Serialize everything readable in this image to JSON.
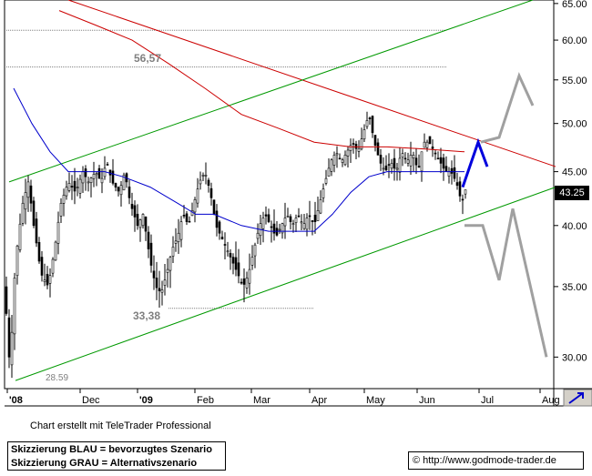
{
  "chart_data": {
    "type": "candlestick",
    "y_scale": "log",
    "ylim": [
      28,
      65.5
    ],
    "y_ticks": [
      "65.00",
      "60.00",
      "55.00",
      "50.00",
      "45.00",
      "40.00",
      "35.00",
      "30.00"
    ],
    "x_ticks": [
      "'08",
      "Dec",
      "'09",
      "Feb",
      "Mar",
      "Apr",
      "May",
      "Jun",
      "Jul",
      "Aug"
    ],
    "last_price": "43.25",
    "annotations": {
      "high": "56,57",
      "low": "33,38",
      "start": "28.59"
    },
    "price_path": [
      [
        0,
        35
      ],
      [
        6,
        29
      ],
      [
        12,
        37
      ],
      [
        20,
        42
      ],
      [
        26,
        44
      ],
      [
        32,
        40
      ],
      [
        40,
        36
      ],
      [
        48,
        35
      ],
      [
        55,
        38
      ],
      [
        62,
        42
      ],
      [
        70,
        44
      ],
      [
        78,
        43
      ],
      [
        86,
        45
      ],
      [
        92,
        44
      ],
      [
        100,
        45
      ],
      [
        106,
        44
      ],
      [
        112,
        46
      ],
      [
        118,
        44
      ],
      [
        126,
        43
      ],
      [
        132,
        45
      ],
      [
        138,
        42
      ],
      [
        146,
        40
      ],
      [
        152,
        41
      ],
      [
        160,
        37
      ],
      [
        166,
        35
      ],
      [
        172,
        34.5
      ],
      [
        178,
        36
      ],
      [
        184,
        38
      ],
      [
        190,
        39
      ],
      [
        196,
        41
      ],
      [
        202,
        40
      ],
      [
        208,
        42
      ],
      [
        214,
        44
      ],
      [
        220,
        45
      ],
      [
        226,
        43
      ],
      [
        232,
        40
      ],
      [
        238,
        39
      ],
      [
        244,
        38
      ],
      [
        250,
        37
      ],
      [
        256,
        36
      ],
      [
        262,
        35
      ],
      [
        268,
        36
      ],
      [
        274,
        38
      ],
      [
        280,
        40
      ],
      [
        286,
        41
      ],
      [
        292,
        40
      ],
      [
        298,
        39
      ],
      [
        304,
        40
      ],
      [
        310,
        41
      ],
      [
        316,
        40
      ],
      [
        322,
        41
      ],
      [
        328,
        40
      ],
      [
        334,
        41
      ],
      [
        340,
        40
      ],
      [
        346,
        42
      ],
      [
        352,
        44
      ],
      [
        358,
        46
      ],
      [
        364,
        47
      ],
      [
        370,
        46
      ],
      [
        376,
        47
      ],
      [
        382,
        48
      ],
      [
        388,
        47
      ],
      [
        394,
        49
      ],
      [
        400,
        51
      ],
      [
        406,
        48
      ],
      [
        412,
        46
      ],
      [
        418,
        45
      ],
      [
        424,
        46
      ],
      [
        430,
        45
      ],
      [
        436,
        47
      ],
      [
        442,
        46
      ],
      [
        448,
        47
      ],
      [
        454,
        45
      ],
      [
        460,
        48
      ],
      [
        466,
        48
      ],
      [
        472,
        47
      ],
      [
        478,
        46
      ],
      [
        484,
        45
      ],
      [
        490,
        45
      ],
      [
        496,
        44
      ],
      [
        502,
        42
      ],
      [
        506,
        43.25
      ]
    ],
    "moving_averages": [
      {
        "color": "#0000cc",
        "values": [
          [
            10,
            54
          ],
          [
            30,
            50
          ],
          [
            50,
            47
          ],
          [
            70,
            45
          ],
          [
            90,
            45
          ],
          [
            110,
            45
          ],
          [
            130,
            44.5
          ],
          [
            160,
            43.5
          ],
          [
            190,
            42
          ],
          [
            210,
            41
          ],
          [
            230,
            41
          ],
          [
            260,
            40
          ],
          [
            290,
            39.5
          ],
          [
            320,
            39.5
          ],
          [
            340,
            39.5
          ],
          [
            360,
            41
          ],
          [
            380,
            43
          ],
          [
            400,
            44.5
          ],
          [
            420,
            45
          ],
          [
            440,
            45
          ],
          [
            460,
            45
          ],
          [
            480,
            45
          ],
          [
            505,
            45
          ]
        ]
      },
      {
        "color": "#cc0000",
        "values": [
          [
            60,
            64
          ],
          [
            100,
            62
          ],
          [
            140,
            60
          ],
          [
            180,
            57
          ],
          [
            220,
            54
          ],
          [
            260,
            51
          ],
          [
            300,
            49.5
          ],
          [
            340,
            48
          ],
          [
            380,
            47.5
          ],
          [
            420,
            47.5
          ],
          [
            460,
            47.3
          ],
          [
            505,
            47
          ]
        ]
      }
    ],
    "trendlines": [
      {
        "color": "#cc0000",
        "from": [
          70,
          65.5
        ],
        "to": [
          605,
          45.5
        ]
      },
      {
        "color": "#009900",
        "from": [
          5,
          44
        ],
        "to": [
          580,
          65.5
        ]
      },
      {
        "color": "#009900",
        "from": [
          12,
          28.5
        ],
        "to": [
          605,
          43.5
        ]
      }
    ],
    "support_resistance_lines": [
      {
        "y": 61.3,
        "from": 5,
        "to": 490
      },
      {
        "y": 56.57,
        "from": 5,
        "to": 490
      },
      {
        "y": 33.38,
        "from": 185,
        "to": 345
      }
    ],
    "scenario_blue": [
      [
        508,
        43.5
      ],
      [
        525,
        48
      ],
      [
        535,
        45.5
      ]
    ],
    "scenario_grey_up": [
      [
        528,
        48
      ],
      [
        548,
        48.5
      ],
      [
        570,
        55.5
      ],
      [
        585,
        52
      ]
    ],
    "scenario_grey_down": [
      [
        510,
        40
      ],
      [
        530,
        40
      ],
      [
        548,
        35.5
      ],
      [
        563,
        41.5
      ],
      [
        600,
        30
      ]
    ]
  },
  "footer": {
    "credit": "Chart erstellt mit TeleTrader Professional",
    "legend_blue": "Skizzierung BLAU = bevorzugtes Szenario",
    "legend_grey": "Skizzierung GRAU = Alternativszenario",
    "url": "© http://www.godmode-trader.de"
  }
}
